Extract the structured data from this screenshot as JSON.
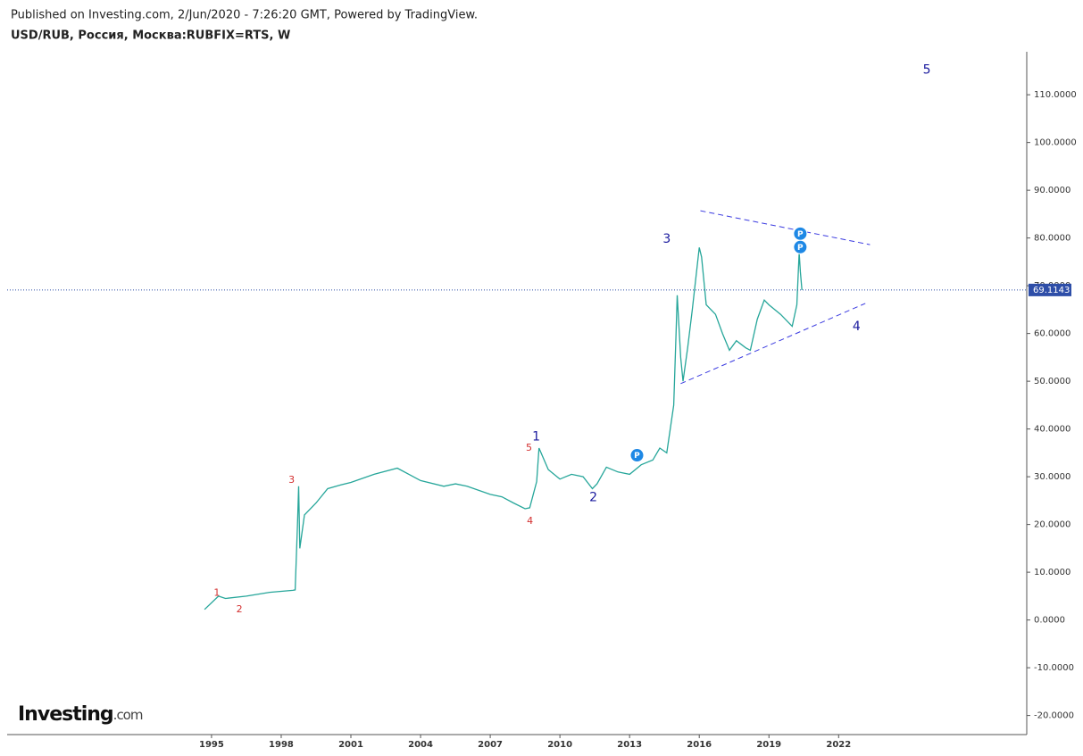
{
  "header": {
    "published": "Published on Investing.com, 2/Jun/2020 - 7:26:20 GMT, Powered by TradingView."
  },
  "logo": {
    "brand": "Investing",
    "suffix": ".com"
  },
  "chart_data": {
    "type": "line",
    "title": "USD/RUB, Россия, Москва:RUBFIX=RTS, W",
    "color": "#26a69a",
    "last_line_color": "#2e4ea8",
    "x": [
      1994.7,
      1995.3,
      1995.6,
      1996.5,
      1997.5,
      1998.5,
      1998.6,
      1998.7,
      1998.75,
      1998.8,
      1999.0,
      1999.5,
      2000.0,
      2000.5,
      2001.0,
      2002.0,
      2003.0,
      2003.5,
      2004.0,
      2005.0,
      2005.5,
      2006.0,
      2007.0,
      2007.5,
      2008.0,
      2008.5,
      2008.7,
      2009.0,
      2009.1,
      2009.5,
      2010.0,
      2010.5,
      2011.0,
      2011.4,
      2011.6,
      2012.0,
      2012.5,
      2013.0,
      2013.5,
      2014.0,
      2014.3,
      2014.6,
      2014.9,
      2015.0,
      2015.05,
      2015.2,
      2015.3,
      2015.5,
      2015.7,
      2016.0,
      2016.1,
      2016.3,
      2016.7,
      2017.0,
      2017.3,
      2017.6,
      2018.0,
      2018.2,
      2018.5,
      2018.8,
      2019.0,
      2019.5,
      2019.9,
      2020.0,
      2020.2,
      2020.3,
      2020.35,
      2020.42
    ],
    "values": [
      2.2,
      5.0,
      4.5,
      5.0,
      5.8,
      6.2,
      6.3,
      20,
      28,
      15,
      22,
      24.5,
      27.5,
      28.2,
      28.8,
      30.5,
      31.8,
      30.5,
      29.2,
      28.0,
      28.5,
      28.0,
      26.3,
      25.8,
      24.5,
      23.3,
      23.5,
      29,
      36,
      31.5,
      29.5,
      30.5,
      30.0,
      27.5,
      28.5,
      32,
      31,
      30.5,
      32.5,
      33.5,
      36,
      35,
      45,
      60,
      68,
      55,
      50,
      57,
      65,
      78,
      76,
      66,
      64,
      60,
      56.5,
      58.5,
      57,
      56.5,
      63,
      67,
      66,
      64,
      62,
      61.5,
      66,
      77,
      73,
      69.1143
    ],
    "xlim": [
      1986.2,
      2030.1
    ],
    "ylim": [
      -24,
      119
    ],
    "xticks": [
      1995,
      1998,
      2001,
      2004,
      2007,
      2010,
      2013,
      2016,
      2019,
      2022
    ],
    "yticks": [
      {
        "value": -20,
        "label": "-20.0000"
      },
      {
        "value": -10,
        "label": "-10.0000"
      },
      {
        "value": 0,
        "label": "0.0000"
      },
      {
        "value": 10,
        "label": "10.0000"
      },
      {
        "value": 20,
        "label": "20.0000"
      },
      {
        "value": 30,
        "label": "30.0000"
      },
      {
        "value": 40,
        "label": "40.0000"
      },
      {
        "value": 50,
        "label": "50.0000"
      },
      {
        "value": 60,
        "label": "60.0000"
      },
      {
        "value": 70,
        "label": "70.0000"
      },
      {
        "value": 80,
        "label": "80.0000"
      },
      {
        "value": 90,
        "label": "90.0000"
      },
      {
        "value": 100,
        "label": "100.0000"
      },
      {
        "value": 110,
        "label": "110.0000"
      }
    ],
    "annotations": [
      {
        "text": "1",
        "x": 1995.23,
        "y": 5.6,
        "color": "#d32f2f",
        "size": 11
      },
      {
        "text": "2",
        "x": 1996.2,
        "y": 2.2,
        "color": "#d32f2f",
        "size": 11
      },
      {
        "text": "3",
        "x": 1998.45,
        "y": 29.3,
        "color": "#d32f2f",
        "size": 11
      },
      {
        "text": "4",
        "x": 2008.71,
        "y": 20.7,
        "color": "#d32f2f",
        "size": 11
      },
      {
        "text": "5",
        "x": 2008.67,
        "y": 36.0,
        "color": "#d32f2f",
        "size": 11
      },
      {
        "text": "1",
        "x": 2008.98,
        "y": 38.3,
        "color": "#1a1a9e",
        "size": 14
      },
      {
        "text": "2",
        "x": 2011.44,
        "y": 25.6,
        "color": "#1a1a9e",
        "size": 14
      },
      {
        "text": "3",
        "x": 2014.6,
        "y": 79.7,
        "color": "#1a1a9e",
        "size": 14
      },
      {
        "text": "4",
        "x": 2022.77,
        "y": 61.4,
        "color": "#1a1a9e",
        "size": 14
      },
      {
        "text": "5",
        "x": 2025.8,
        "y": 115.2,
        "color": "#1a1a9e",
        "size": 14
      }
    ],
    "trend_lines": [
      {
        "x": [
          2016.05,
          2023.35
        ],
        "y": [
          85.7,
          78.6
        ],
        "color": "#3a3ae0"
      },
      {
        "x": [
          2015.2,
          2023.15
        ],
        "y": [
          49.5,
          66.3
        ],
        "color": "#3a3ae0"
      }
    ],
    "markers": [
      {
        "label": "P",
        "x": 2013.32,
        "y": 34.5,
        "color": "#1e88e5"
      },
      {
        "label": "P",
        "x": 2020.35,
        "y": 80.9,
        "color": "#1e88e5"
      },
      {
        "label": "P",
        "x": 2020.35,
        "y": 78.1,
        "color": "#1e88e5"
      }
    ]
  }
}
